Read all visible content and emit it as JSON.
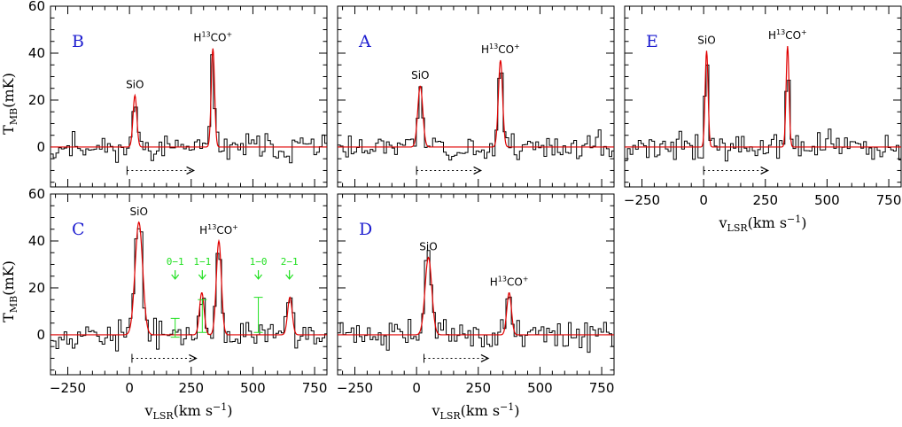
{
  "chart_data": {
    "type": "line",
    "xlim": [
      -320,
      800
    ],
    "ylim": [
      -17,
      60
    ],
    "x_ticks": [
      -250,
      0,
      250,
      500,
      750
    ],
    "y_ticks": [
      0,
      20,
      40,
      60
    ],
    "x_tick_labels": [
      "−250",
      "0",
      "250",
      "500",
      "750"
    ],
    "y_tick_labels": [
      "0",
      "20",
      "40",
      "60"
    ],
    "xlabel": {
      "main": "v",
      "sub": "LSR",
      "units": "(km s",
      "sup": "−1",
      "close": ")"
    },
    "ylabel": {
      "main": "T",
      "sub": "MB",
      "units": "(mK)"
    },
    "colors": {
      "spectrum": "#000000",
      "fit": "#e00000",
      "panel_label": "#1f1fd0",
      "hfs": "#22e022"
    },
    "panels": [
      {
        "id": "B",
        "row": 0,
        "col": 0,
        "label": "B",
        "show_xticks": false,
        "show_yticks": true,
        "seed": 11,
        "noise": 5.5,
        "lines": [
          {
            "name": "SiO",
            "label": "SiO",
            "v": 22,
            "peak": 22,
            "fwhm": 18
          },
          {
            "name": "H13CO+",
            "label": "H",
            "iso": "13",
            "rest": "CO",
            "charge": "+",
            "v": 338,
            "peak": 42,
            "fwhm": 16
          }
        ],
        "arrow": [
          -10,
          260
        ]
      },
      {
        "id": "A",
        "row": 0,
        "col": 1,
        "label": "A",
        "show_xticks": false,
        "show_yticks": false,
        "seed": 23,
        "noise": 5.5,
        "lines": [
          {
            "name": "SiO",
            "label": "SiO",
            "v": 15,
            "peak": 26,
            "fwhm": 24
          },
          {
            "name": "H13CO+",
            "label": "H",
            "iso": "13",
            "rest": "CO",
            "charge": "+",
            "v": 340,
            "peak": 37,
            "fwhm": 20
          }
        ],
        "arrow": [
          0,
          260
        ]
      },
      {
        "id": "E",
        "row": 0,
        "col": 2,
        "label": "E",
        "show_xticks": true,
        "show_yticks": false,
        "seed": 37,
        "noise": 5.5,
        "lines": [
          {
            "name": "SiO",
            "label": "SiO",
            "v": 12,
            "peak": 41,
            "fwhm": 14
          },
          {
            "name": "H13CO+",
            "label": "H",
            "iso": "13",
            "rest": "CO",
            "charge": "+",
            "v": 340,
            "peak": 43,
            "fwhm": 14
          }
        ],
        "arrow": [
          0,
          260
        ]
      },
      {
        "id": "C",
        "row": 1,
        "col": 0,
        "label": "C",
        "show_xticks": true,
        "show_yticks": true,
        "seed": 53,
        "noise": 5.5,
        "lines": [
          {
            "name": "SiO",
            "label": "SiO",
            "v": 38,
            "peak": 48,
            "fwhm": 36
          },
          {
            "name": "H13CO+",
            "label": "H",
            "iso": "13",
            "rest": "CO",
            "charge": "+",
            "v": 362,
            "peak": 40,
            "fwhm": 24
          }
        ],
        "extra_peaks": [
          {
            "v": 293,
            "peak": 18,
            "fwhm": 22
          },
          {
            "v": 650,
            "peak": 16,
            "fwhm": 22
          }
        ],
        "hfs": [
          {
            "label": "0−1",
            "v": 185,
            "bar": [
              -1,
              7
            ]
          },
          {
            "label": "1−1",
            "v": 295,
            "bar": [
              1,
              15
            ]
          },
          {
            "label": "1−0",
            "v": 522,
            "bar": [
              1,
              16
            ]
          },
          {
            "label": "2−1",
            "v": 648,
            "bar": [
              null,
              null
            ]
          }
        ],
        "arrow": [
          10,
          270
        ]
      },
      {
        "id": "D",
        "row": 1,
        "col": 1,
        "label": "D",
        "show_xticks": true,
        "show_yticks": false,
        "seed": 71,
        "noise": 6.0,
        "lines": [
          {
            "name": "SiO",
            "label": "SiO",
            "v": 48,
            "peak": 33,
            "fwhm": 32
          },
          {
            "name": "H13CO+",
            "label": "H",
            "iso": "13",
            "rest": "CO",
            "charge": "+",
            "v": 375,
            "peak": 18,
            "fwhm": 22
          }
        ],
        "arrow": [
          30,
          290
        ]
      }
    ]
  }
}
